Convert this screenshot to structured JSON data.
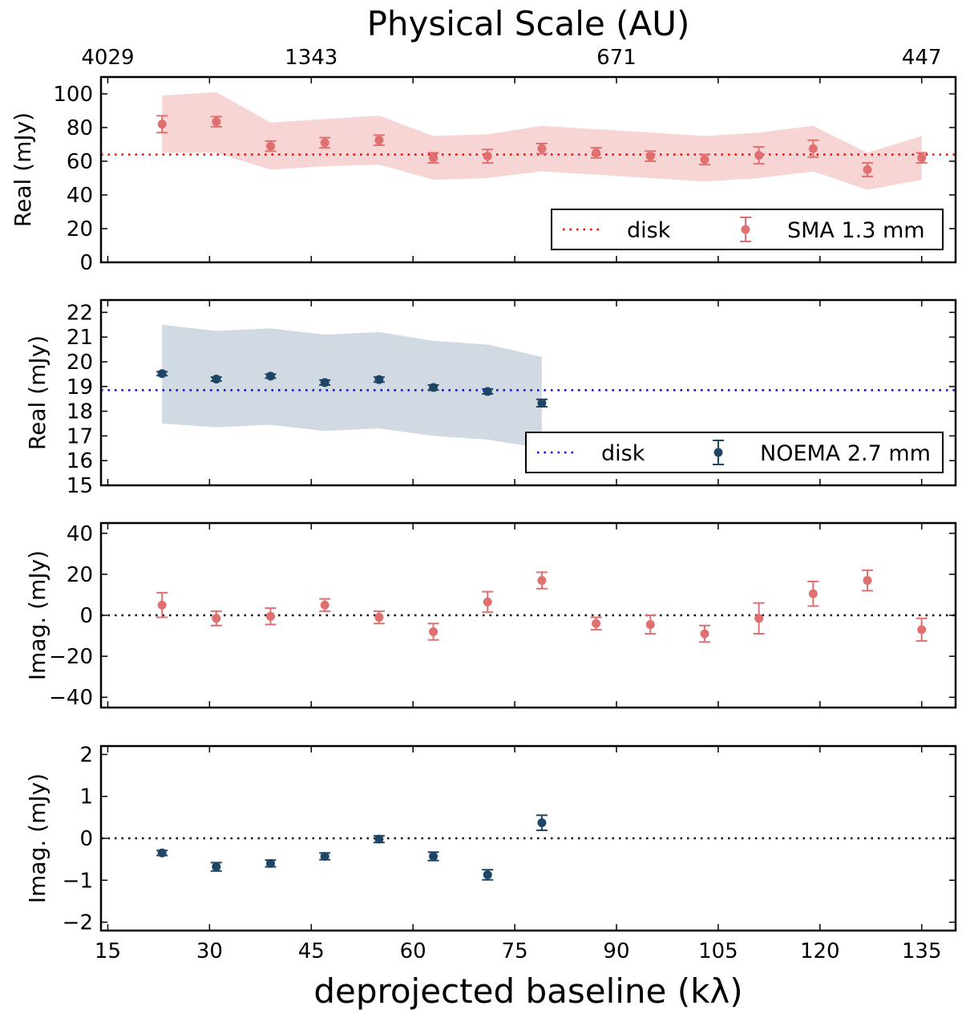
{
  "chart_data": {
    "type": "scatter",
    "top_axis": {
      "label": "Physical Scale (AU)",
      "ticks": [
        {
          "at": 15,
          "label": "4029"
        },
        {
          "at": 45,
          "label": "1343"
        },
        {
          "at": 90,
          "label": "671"
        },
        {
          "at": 135,
          "label": "447"
        }
      ]
    },
    "x_axis": {
      "label": "deprojected baseline (kλ)",
      "xlim": [
        14,
        140
      ],
      "ticks": [
        15,
        30,
        45,
        60,
        75,
        90,
        105,
        120,
        135
      ]
    },
    "panels": [
      {
        "id": "sma-real",
        "ylabel": "Real (mJy)",
        "ylim": [
          0,
          110
        ],
        "yticks": [
          0,
          20,
          40,
          60,
          80,
          100
        ],
        "color": "#e07070",
        "band_color": "#f6d5d4",
        "reference_line": {
          "label": "disk",
          "y": 64,
          "color": "#ff0000"
        },
        "legend": {
          "line_label": "disk",
          "series_label": "SMA 1.3 mm",
          "placement": "lower-right"
        },
        "series": {
          "name": "SMA 1.3 mm",
          "x": [
            23,
            31,
            39,
            47,
            55,
            63,
            71,
            79,
            87,
            95,
            103,
            111,
            119,
            127,
            135
          ],
          "y": [
            82,
            83.5,
            69,
            71,
            72.5,
            62,
            63,
            67.5,
            65,
            63,
            61,
            63.5,
            67.5,
            55,
            62
          ],
          "err": [
            5,
            3,
            3,
            3,
            3,
            3,
            4,
            3,
            3,
            3,
            3,
            5,
            5,
            4,
            3
          ]
        },
        "band": {
          "x": [
            23,
            31,
            39,
            47,
            55,
            63,
            71,
            79,
            87,
            95,
            103,
            111,
            119,
            127,
            135
          ],
          "upper": [
            99,
            101,
            83,
            85,
            87,
            75,
            76,
            81,
            79,
            77,
            75,
            77,
            81,
            65,
            75
          ],
          "lower": [
            65,
            65,
            55,
            57,
            58,
            49,
            50,
            54,
            52,
            50,
            48,
            50,
            54,
            43,
            49
          ]
        }
      },
      {
        "id": "noema-real",
        "ylabel": "Real (mJy)",
        "ylim": [
          15,
          22.5
        ],
        "yticks": [
          15,
          16,
          17,
          18,
          19,
          20,
          21,
          22
        ],
        "color": "#1f4566",
        "band_color": "#d1dae2",
        "reference_line": {
          "label": "disk",
          "y": 18.85,
          "color": "#0000ff"
        },
        "legend": {
          "line_label": "disk",
          "series_label": "NOEMA 2.7 mm",
          "placement": "lower-right"
        },
        "series": {
          "name": "NOEMA 2.7 mm",
          "x": [
            23,
            31,
            39,
            47,
            55,
            63,
            71,
            79
          ],
          "y": [
            19.52,
            19.3,
            19.42,
            19.16,
            19.28,
            18.96,
            18.8,
            18.33
          ],
          "err": [
            0.08,
            0.08,
            0.08,
            0.1,
            0.1,
            0.1,
            0.1,
            0.15
          ]
        },
        "band": {
          "x": [
            23,
            31,
            39,
            47,
            55,
            63,
            71,
            79
          ],
          "upper": [
            21.5,
            21.25,
            21.35,
            21.1,
            21.2,
            20.85,
            20.7,
            20.2
          ],
          "lower": [
            17.5,
            17.35,
            17.45,
            17.2,
            17.3,
            17.0,
            16.85,
            16.5
          ]
        }
      },
      {
        "id": "sma-imag",
        "ylabel": "Imag. (mJy)",
        "ylim": [
          -45,
          45
        ],
        "yticks": [
          -40,
          -20,
          0,
          20,
          40
        ],
        "color": "#e07070",
        "reference_line": {
          "y": 0,
          "color": "#000000"
        },
        "series": {
          "name": "SMA 1.3 mm",
          "x": [
            23,
            31,
            39,
            47,
            55,
            63,
            71,
            79,
            87,
            95,
            103,
            111,
            119,
            127,
            135
          ],
          "y": [
            5,
            -1.5,
            -0.5,
            5,
            -1,
            -8,
            6.5,
            17,
            -4,
            -4.5,
            -9,
            -1.5,
            10.5,
            17,
            -7
          ],
          "err": [
            6,
            3.5,
            4,
            3,
            3,
            4,
            5,
            4,
            3,
            4.5,
            4,
            7.5,
            6,
            5,
            5.5
          ]
        }
      },
      {
        "id": "noema-imag",
        "ylabel": "Imag. (mJy)",
        "ylim": [
          -2.2,
          2.2
        ],
        "yticks": [
          -2,
          -1,
          0,
          1,
          2
        ],
        "color": "#1f4566",
        "reference_line": {
          "y": 0,
          "color": "#000000"
        },
        "series": {
          "name": "NOEMA 2.7 mm",
          "x": [
            23,
            31,
            39,
            47,
            55,
            63,
            71,
            79
          ],
          "y": [
            -0.35,
            -0.68,
            -0.6,
            -0.43,
            -0.02,
            -0.43,
            -0.87,
            0.37
          ],
          "err": [
            0.06,
            0.1,
            0.08,
            0.08,
            0.08,
            0.1,
            0.12,
            0.18
          ]
        }
      }
    ]
  }
}
